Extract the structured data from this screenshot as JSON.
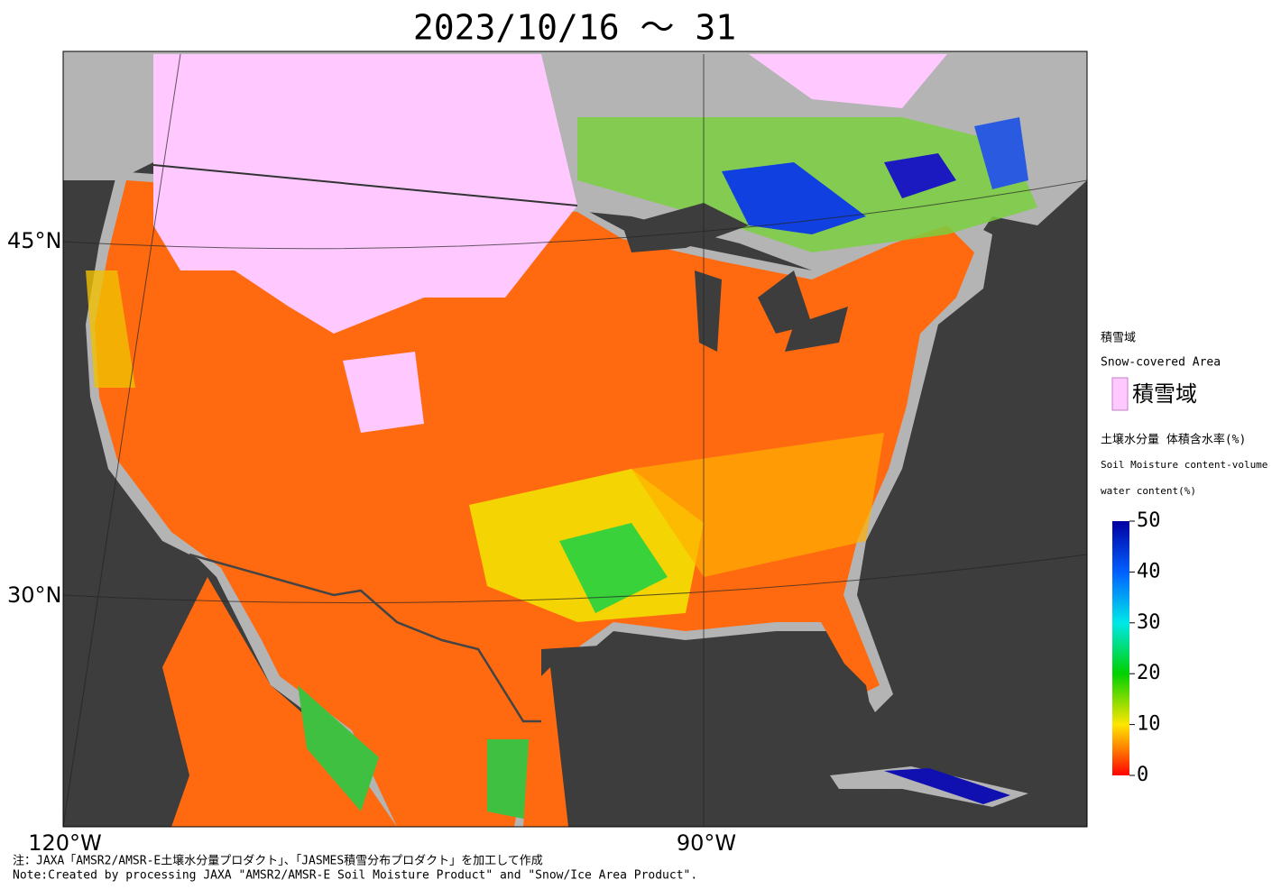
{
  "title": "2023/10/16 ～ 31",
  "map": {
    "lat_labels": [
      "45°N",
      "30°N"
    ],
    "lon_labels": [
      "120°W",
      "90°W"
    ]
  },
  "legend": {
    "snow_title_ja": "積雪域",
    "snow_title_en": "Snow-covered Area",
    "snow_swatch_label": "積雪域",
    "moisture_title_ja": "土壌水分量 体積含水率(%)",
    "moisture_title_en_1": "Soil Moisture content-volume",
    "moisture_title_en_2": "water content(%)"
  },
  "colorbar": {
    "lim": [
      0,
      50
    ],
    "ticks": [
      0,
      10,
      20,
      30,
      40,
      50
    ]
  },
  "notes": [
    "注：JAXA「AMSR2/AMSR-E土壌水分量プロダクト」、「JASMES積雪分布プロダクト」を加工して作成",
    "Note:Created by processing JAXA \"AMSR2/AMSR-E Soil Moisture Product\" and \"Snow/Ice Area Product\"."
  ]
}
